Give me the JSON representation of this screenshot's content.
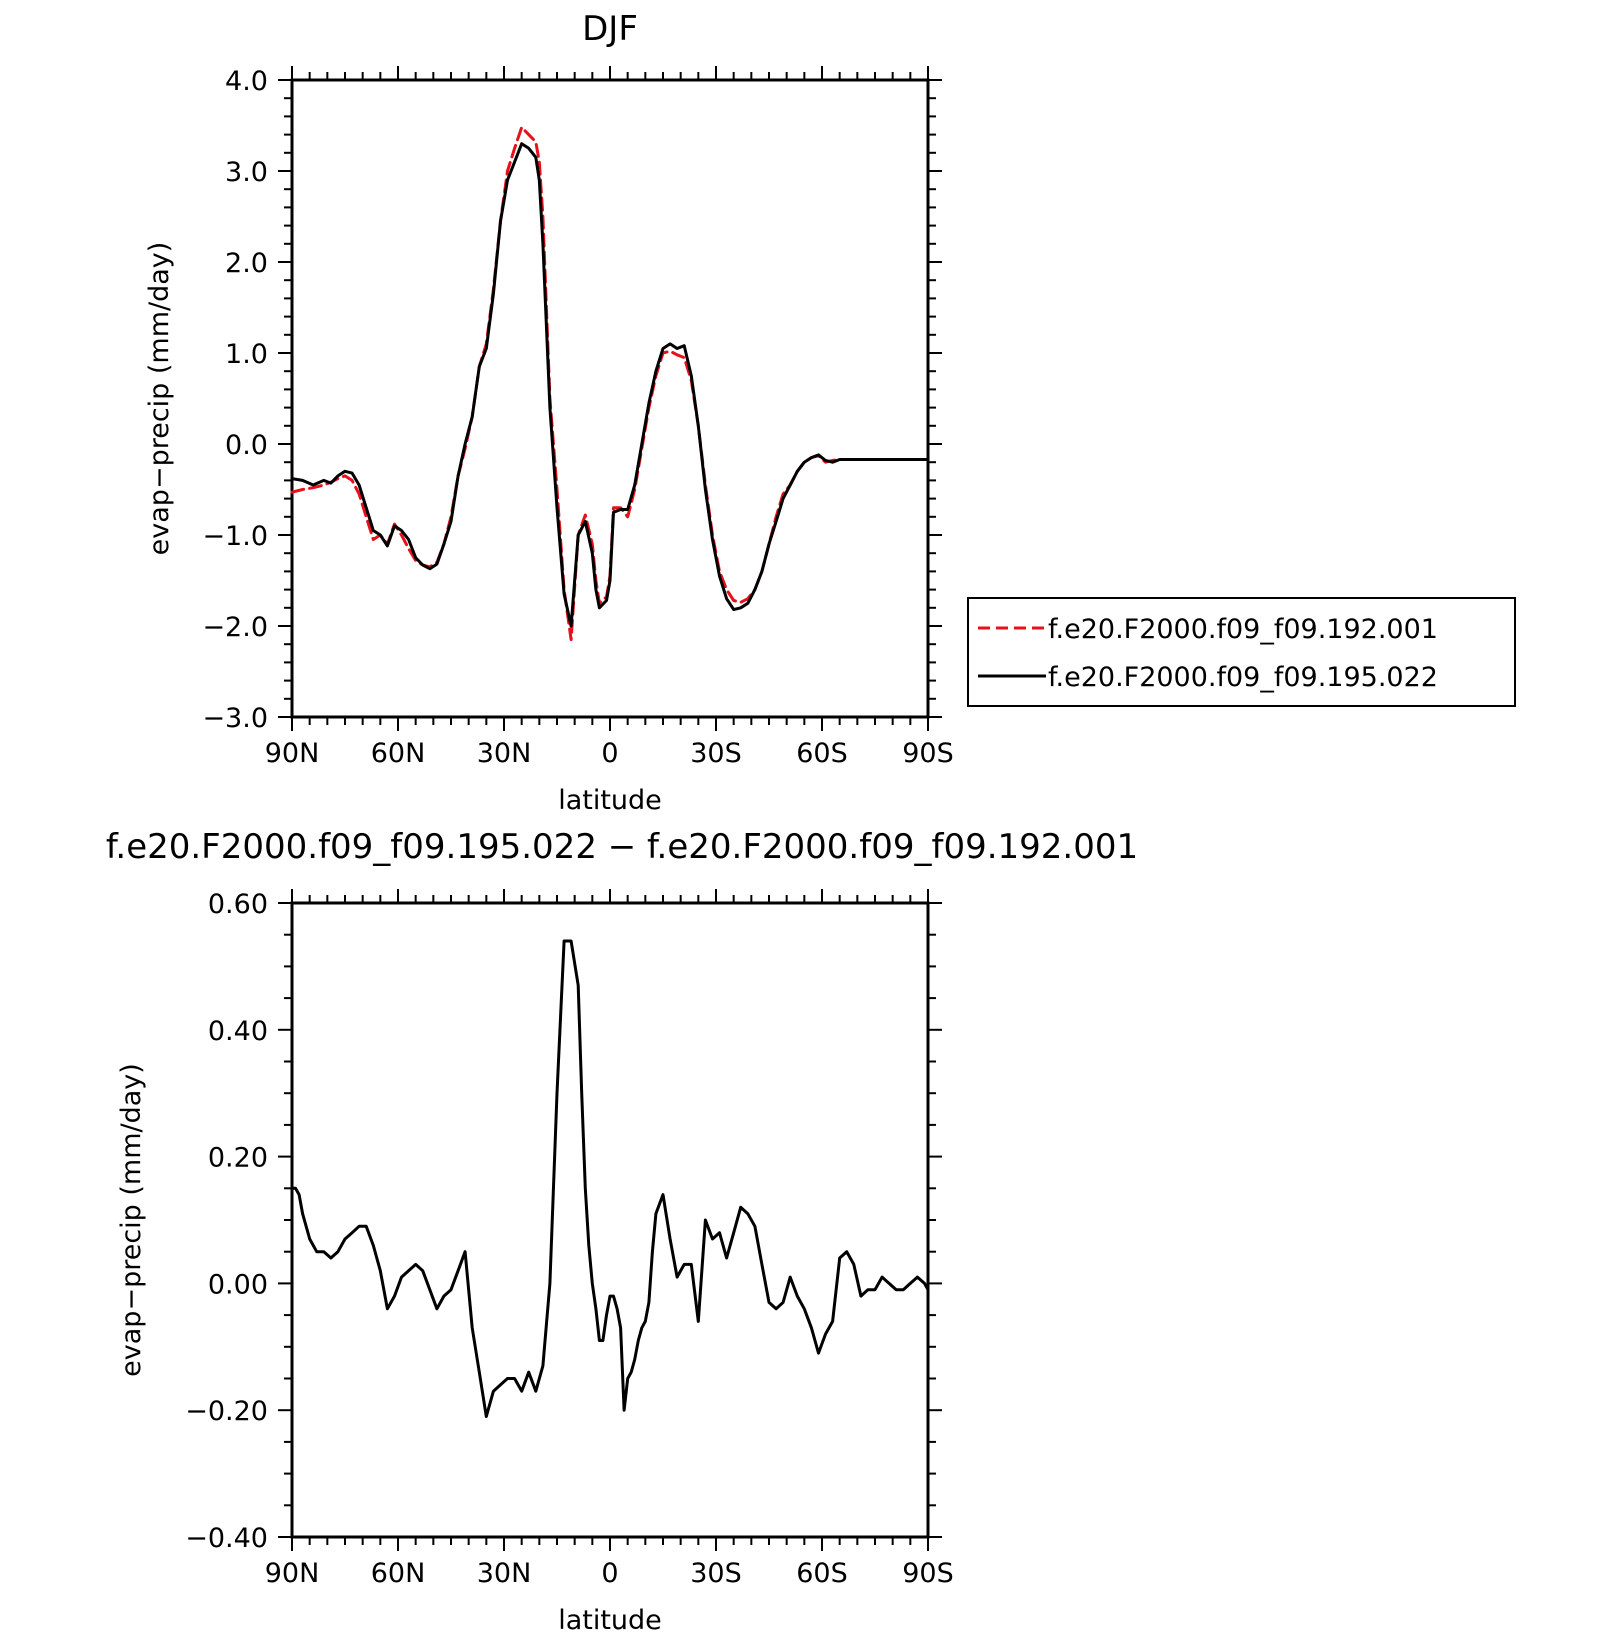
{
  "chart_data": [
    {
      "type": "line",
      "title": "DJF",
      "xlabel": "latitude",
      "ylabel": "evap−precip (mm/day)",
      "xlim": [
        90,
        -90
      ],
      "ylim": [
        -3.0,
        4.0
      ],
      "x_ticks": [
        {
          "value": 90,
          "label": "90N"
        },
        {
          "value": 60,
          "label": "60N"
        },
        {
          "value": 30,
          "label": "30N"
        },
        {
          "value": 0,
          "label": "0"
        },
        {
          "value": -30,
          "label": "30S"
        },
        {
          "value": -60,
          "label": "60S"
        },
        {
          "value": -90,
          "label": "90S"
        }
      ],
      "y_ticks": [
        {
          "value": 4.0,
          "label": "4.0"
        },
        {
          "value": 3.0,
          "label": "3.0"
        },
        {
          "value": 2.0,
          "label": "2.0"
        },
        {
          "value": 1.0,
          "label": "1.0"
        },
        {
          "value": 0.0,
          "label": "0.0"
        },
        {
          "value": -1.0,
          "label": "−1.0"
        },
        {
          "value": -2.0,
          "label": "−2.0"
        },
        {
          "value": -3.0,
          "label": "−3.0"
        }
      ],
      "grid": false,
      "legend_position": "right",
      "series": [
        {
          "name": "f.e20.F2000.f09_f09.192.001",
          "color": "#e8101b",
          "dash": "dashed",
          "x": [
            90,
            87,
            84,
            81,
            79,
            77,
            75,
            73,
            71,
            69,
            67,
            65,
            63,
            61,
            59,
            57,
            55,
            53,
            51,
            49,
            47,
            45,
            43,
            41,
            39,
            37,
            35,
            33,
            31,
            29,
            27,
            25,
            23,
            21,
            20,
            19,
            17,
            15,
            13,
            11,
            9,
            7,
            5,
            4,
            3,
            1,
            0,
            -1,
            -3,
            -5,
            -7,
            -9,
            -11,
            -13,
            -15,
            -17,
            -19,
            -21,
            -23,
            -25,
            -27,
            -29,
            -31,
            -33,
            -35,
            -37,
            -39,
            -41,
            -43,
            -45,
            -47,
            -49,
            -51,
            -53,
            -55,
            -57,
            -59,
            -61,
            -63,
            -65,
            -67,
            -69,
            -71,
            -73,
            -75,
            -77,
            -79,
            -81,
            -83,
            -85,
            -87,
            -90
          ],
          "y": [
            -0.53,
            -0.5,
            -0.48,
            -0.45,
            -0.42,
            -0.38,
            -0.35,
            -0.4,
            -0.55,
            -0.8,
            -1.05,
            -1.0,
            -1.1,
            -0.88,
            -1.0,
            -1.15,
            -1.28,
            -1.33,
            -1.35,
            -1.3,
            -1.1,
            -0.8,
            -0.35,
            -0.05,
            0.3,
            0.85,
            1.1,
            1.7,
            2.45,
            3.0,
            3.25,
            3.48,
            3.4,
            3.32,
            3.1,
            2.5,
            0.5,
            -0.5,
            -1.6,
            -2.15,
            -1.0,
            -0.78,
            -1.1,
            -1.5,
            -1.75,
            -1.68,
            -1.45,
            -0.7,
            -0.7,
            -0.8,
            -0.5,
            -0.05,
            0.4,
            0.75,
            1.0,
            1.02,
            0.98,
            0.95,
            0.7,
            0.2,
            -0.45,
            -1.0,
            -1.4,
            -1.6,
            -1.72,
            -1.74,
            -1.7,
            -1.6,
            -1.4,
            -1.1,
            -0.8,
            -0.55,
            -0.45,
            -0.3,
            -0.2,
            -0.15,
            -0.13,
            -0.2,
            -0.18,
            -0.17,
            -0.17,
            -0.17,
            -0.17,
            -0.17,
            -0.17,
            -0.17,
            -0.17,
            -0.17,
            -0.17,
            -0.17,
            -0.17,
            -0.17
          ]
        },
        {
          "name": "f.e20.F2000.f09_f09.195.022",
          "color": "#000000",
          "dash": "solid",
          "x": [
            90,
            87,
            84,
            81,
            79,
            77,
            75,
            73,
            71,
            69,
            67,
            65,
            63,
            61,
            59,
            57,
            55,
            53,
            51,
            49,
            47,
            45,
            43,
            41,
            39,
            37,
            35,
            33,
            31,
            29,
            27,
            25,
            23,
            21,
            20,
            19,
            17,
            15,
            13,
            11,
            9,
            7,
            5,
            4,
            3,
            1,
            0,
            -1,
            -3,
            -5,
            -7,
            -9,
            -11,
            -13,
            -15,
            -17,
            -19,
            -21,
            -23,
            -25,
            -27,
            -29,
            -31,
            -33,
            -35,
            -37,
            -39,
            -41,
            -43,
            -45,
            -47,
            -49,
            -51,
            -53,
            -55,
            -57,
            -59,
            -61,
            -63,
            -65,
            -67,
            -69,
            -71,
            -73,
            -75,
            -77,
            -79,
            -81,
            -83,
            -85,
            -87,
            -90
          ],
          "y": [
            -0.38,
            -0.4,
            -0.45,
            -0.4,
            -0.43,
            -0.35,
            -0.3,
            -0.32,
            -0.45,
            -0.7,
            -0.95,
            -1.0,
            -1.12,
            -0.9,
            -0.95,
            -1.05,
            -1.25,
            -1.33,
            -1.37,
            -1.32,
            -1.1,
            -0.85,
            -0.35,
            0.0,
            0.3,
            0.85,
            1.05,
            1.65,
            2.45,
            2.9,
            3.1,
            3.3,
            3.25,
            3.15,
            2.9,
            2.2,
            0.4,
            -0.7,
            -1.65,
            -2.0,
            -1.0,
            -0.85,
            -1.2,
            -1.6,
            -1.8,
            -1.72,
            -1.5,
            -0.75,
            -0.72,
            -0.72,
            -0.45,
            0.0,
            0.45,
            0.8,
            1.05,
            1.1,
            1.05,
            1.08,
            0.75,
            0.2,
            -0.5,
            -1.05,
            -1.45,
            -1.7,
            -1.82,
            -1.8,
            -1.75,
            -1.6,
            -1.4,
            -1.1,
            -0.85,
            -0.6,
            -0.45,
            -0.3,
            -0.2,
            -0.15,
            -0.12,
            -0.18,
            -0.2,
            -0.17,
            -0.17,
            -0.17,
            -0.17,
            -0.17,
            -0.17,
            -0.17,
            -0.17,
            -0.17,
            -0.17,
            -0.17,
            -0.17,
            -0.17
          ]
        }
      ]
    },
    {
      "type": "line",
      "title": "f.e20.F2000.f09_f09.195.022 − f.e20.F2000.f09_f09.192.001",
      "xlabel": "latitude",
      "ylabel": "evap−precip (mm/day)",
      "xlim": [
        90,
        -90
      ],
      "ylim": [
        -0.4,
        0.6
      ],
      "x_ticks": [
        {
          "value": 90,
          "label": "90N"
        },
        {
          "value": 60,
          "label": "60N"
        },
        {
          "value": 30,
          "label": "30N"
        },
        {
          "value": 0,
          "label": "0"
        },
        {
          "value": -30,
          "label": "30S"
        },
        {
          "value": -60,
          "label": "60S"
        },
        {
          "value": -90,
          "label": "90S"
        }
      ],
      "y_ticks": [
        {
          "value": 0.6,
          "label": "0.60"
        },
        {
          "value": 0.4,
          "label": "0.40"
        },
        {
          "value": 0.2,
          "label": "0.20"
        },
        {
          "value": 0.0,
          "label": "0.00"
        },
        {
          "value": -0.2,
          "label": "−0.20"
        },
        {
          "value": -0.4,
          "label": "−0.40"
        }
      ],
      "grid": false,
      "series": [
        {
          "color": "#000000",
          "dash": "solid",
          "x": [
            90,
            89,
            88,
            87,
            85,
            83,
            81,
            79,
            77,
            75,
            73,
            71,
            69,
            67,
            65,
            63,
            61,
            59,
            57,
            55,
            53,
            51,
            49,
            47,
            45,
            43,
            41,
            39,
            37,
            35,
            33,
            31,
            29,
            27,
            25,
            23,
            21,
            19,
            17,
            15,
            13,
            11,
            9,
            8,
            7,
            6,
            5,
            4,
            3,
            2,
            1,
            0,
            -1,
            -2,
            -3,
            -4,
            -5,
            -6,
            -7,
            -8,
            -9,
            -10,
            -11,
            -12,
            -13,
            -15,
            -17,
            -19,
            -21,
            -23,
            -25,
            -27,
            -29,
            -31,
            -33,
            -35,
            -37,
            -39,
            -41,
            -43,
            -45,
            -47,
            -49,
            -51,
            -53,
            -55,
            -57,
            -59,
            -61,
            -63,
            -65,
            -67,
            -69,
            -71,
            -73,
            -75,
            -77,
            -79,
            -81,
            -83,
            -85,
            -87,
            -89,
            -90
          ],
          "y": [
            0.15,
            0.15,
            0.14,
            0.11,
            0.07,
            0.05,
            0.05,
            0.04,
            0.05,
            0.07,
            0.08,
            0.09,
            0.09,
            0.06,
            0.02,
            -0.04,
            -0.02,
            0.01,
            0.02,
            0.03,
            0.02,
            -0.01,
            -0.04,
            -0.02,
            -0.01,
            0.02,
            0.05,
            -0.07,
            -0.14,
            -0.21,
            -0.17,
            -0.16,
            -0.15,
            -0.15,
            -0.17,
            -0.14,
            -0.17,
            -0.13,
            0.0,
            0.3,
            0.54,
            0.54,
            0.47,
            0.3,
            0.15,
            0.06,
            0.0,
            -0.04,
            -0.09,
            -0.09,
            -0.05,
            -0.02,
            -0.02,
            -0.04,
            -0.07,
            -0.2,
            -0.15,
            -0.14,
            -0.12,
            -0.09,
            -0.07,
            -0.06,
            -0.03,
            0.05,
            0.11,
            0.14,
            0.07,
            0.01,
            0.03,
            0.03,
            -0.06,
            0.1,
            0.07,
            0.08,
            0.04,
            0.08,
            0.12,
            0.11,
            0.09,
            0.03,
            -0.03,
            -0.04,
            -0.03,
            0.01,
            -0.02,
            -0.04,
            -0.07,
            -0.11,
            -0.08,
            -0.06,
            0.04,
            0.05,
            0.03,
            -0.02,
            -0.01,
            -0.01,
            0.01,
            0.0,
            -0.01,
            -0.01,
            0.0,
            0.01,
            0.0,
            -0.01
          ]
        }
      ]
    }
  ]
}
